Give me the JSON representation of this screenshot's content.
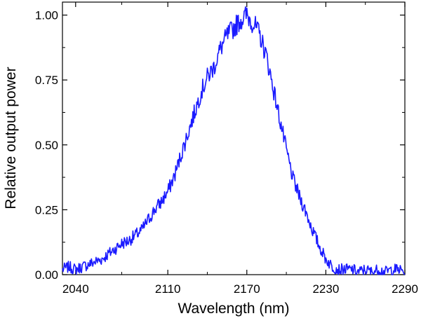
{
  "chart_data": {
    "type": "line",
    "title": "",
    "xlabel": "Wavelength (nm)",
    "ylabel": "Relative output power",
    "xlim": [
      2030,
      2290
    ],
    "ylim": [
      0,
      1.05
    ],
    "x_ticks": [
      2040,
      2110,
      2170,
      2230,
      2290
    ],
    "x_tick_labels": [
      "2040",
      "2110",
      "2170",
      "2230",
      "2290"
    ],
    "y_ticks": [
      0,
      0.25,
      0.5,
      0.75,
      1.0
    ],
    "y_tick_labels": [
      "0.00",
      "0.25",
      "0.50",
      "0.75",
      "1.00"
    ],
    "grid": false,
    "legend": "none",
    "series": [
      {
        "color": "#1a1aff",
        "x": [
          2030,
          2035,
          2040,
          2045,
          2050,
          2055,
          2060,
          2065,
          2070,
          2075,
          2080,
          2085,
          2090,
          2095,
          2100,
          2105,
          2110,
          2115,
          2120,
          2125,
          2130,
          2135,
          2140,
          2145,
          2150,
          2155,
          2160,
          2165,
          2170,
          2173,
          2176,
          2180,
          2185,
          2190,
          2195,
          2200,
          2205,
          2210,
          2215,
          2220,
          2225,
          2230,
          2235,
          2240,
          2245,
          2250,
          2255,
          2260,
          2265,
          2270,
          2275,
          2280,
          2285,
          2290
        ],
        "y": [
          0.02,
          0.03,
          0.02,
          0.03,
          0.04,
          0.05,
          0.06,
          0.08,
          0.1,
          0.12,
          0.13,
          0.15,
          0.17,
          0.21,
          0.25,
          0.28,
          0.32,
          0.38,
          0.46,
          0.54,
          0.62,
          0.7,
          0.76,
          0.8,
          0.87,
          0.92,
          0.95,
          0.98,
          1.0,
          0.98,
          0.96,
          0.92,
          0.84,
          0.72,
          0.6,
          0.48,
          0.37,
          0.3,
          0.24,
          0.17,
          0.11,
          0.06,
          0.03,
          0.02,
          0.02,
          0.02,
          0.01,
          0.02,
          0.01,
          0.02,
          0.01,
          0.02,
          0.02,
          0.01
        ]
      }
    ]
  }
}
